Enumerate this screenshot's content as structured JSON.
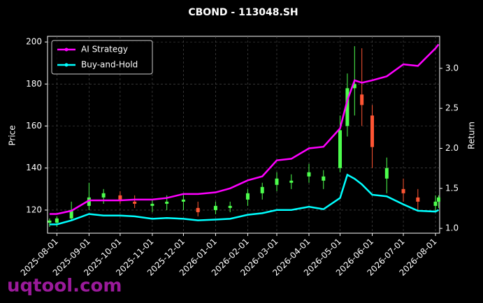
{
  "chart_data": {
    "type": "candlestick",
    "title": "CBOND - 113048.SH",
    "ylabel": "Price",
    "y2label": "Return",
    "watermark": "uqtool.com",
    "x": [
      "2025-07-25",
      "2025-08-01",
      "2025-08-15",
      "2025-09-01",
      "2025-09-15",
      "2025-10-01",
      "2025-10-15",
      "2025-11-01",
      "2025-11-15",
      "2025-12-01",
      "2025-12-15",
      "2026-01-01",
      "2026-01-15",
      "2026-02-01",
      "2026-02-15",
      "2026-03-01",
      "2026-03-15",
      "2026-04-01",
      "2026-04-15",
      "2026-05-01",
      "2026-05-08",
      "2026-05-15",
      "2026-05-22",
      "2026-06-01",
      "2026-06-15",
      "2026-07-01",
      "2026-07-15",
      "2026-08-01",
      "2026-08-04"
    ],
    "open": [
      114,
      114,
      116,
      122,
      126,
      127,
      124,
      122,
      123,
      124,
      121,
      120,
      121,
      125,
      128,
      132,
      133,
      136,
      134,
      140,
      160,
      178,
      175,
      165,
      135,
      130,
      126,
      122,
      124
    ],
    "high": [
      116,
      117,
      124,
      133,
      130,
      129,
      127,
      125,
      127,
      128,
      124,
      124,
      124,
      130,
      133,
      138,
      137,
      142,
      139,
      165,
      185,
      198,
      197,
      170,
      145,
      135,
      130,
      127,
      127
    ],
    "low": [
      112,
      112,
      115,
      120,
      123,
      123,
      121,
      119,
      120,
      120,
      117,
      118,
      119,
      122,
      125,
      129,
      130,
      133,
      130,
      138,
      155,
      165,
      160,
      140,
      128,
      124,
      120,
      119,
      121
    ],
    "close": [
      115,
      116,
      120,
      126,
      128,
      125,
      123,
      123,
      124,
      125,
      119,
      122,
      122,
      128,
      131,
      135,
      134,
      138,
      136,
      158,
      178,
      180,
      170,
      150,
      140,
      128,
      124,
      124,
      126
    ],
    "up_color": "#4dff4d",
    "down_color": "#ff5533",
    "series": [
      {
        "name": "AI Strategy",
        "color": "#ff00ff",
        "axis": "y2",
        "values": [
          1.18,
          1.18,
          1.22,
          1.35,
          1.35,
          1.35,
          1.36,
          1.36,
          1.38,
          1.43,
          1.43,
          1.45,
          1.5,
          1.6,
          1.65,
          1.85,
          1.87,
          2.0,
          2.02,
          2.25,
          2.6,
          2.85,
          2.82,
          2.85,
          2.9,
          3.05,
          3.03,
          3.25,
          3.3
        ]
      },
      {
        "name": "Buy-and-Hold",
        "color": "#00ffff",
        "axis": "y2",
        "values": [
          1.05,
          1.05,
          1.1,
          1.18,
          1.16,
          1.16,
          1.15,
          1.12,
          1.13,
          1.12,
          1.1,
          1.11,
          1.12,
          1.17,
          1.19,
          1.23,
          1.23,
          1.27,
          1.24,
          1.38,
          1.67,
          1.62,
          1.55,
          1.42,
          1.4,
          1.3,
          1.22,
          1.21,
          1.23
        ]
      }
    ],
    "xlim": [
      "2025-07-23",
      "2026-08-05"
    ],
    "xticks": [
      "2025-08-01",
      "2025-09-01",
      "2025-10-01",
      "2025-11-01",
      "2025-12-01",
      "2026-01-01",
      "2026-02-01",
      "2026-03-01",
      "2026-04-01",
      "2026-05-01",
      "2026-06-01",
      "2026-07-01",
      "2026-08-01"
    ],
    "ylim": [
      109,
      202.7
    ],
    "yticks": [
      120,
      140,
      160,
      180,
      200
    ],
    "y2lim": [
      0.94,
      3.4
    ],
    "y2ticks": [
      {
        "value": 1,
        "label": "1.0"
      },
      1.5,
      {
        "value": 2,
        "label": "2.0"
      },
      2.5,
      {
        "value": 3,
        "label": "3.0"
      }
    ],
    "grid": true,
    "legend": "upper left"
  }
}
